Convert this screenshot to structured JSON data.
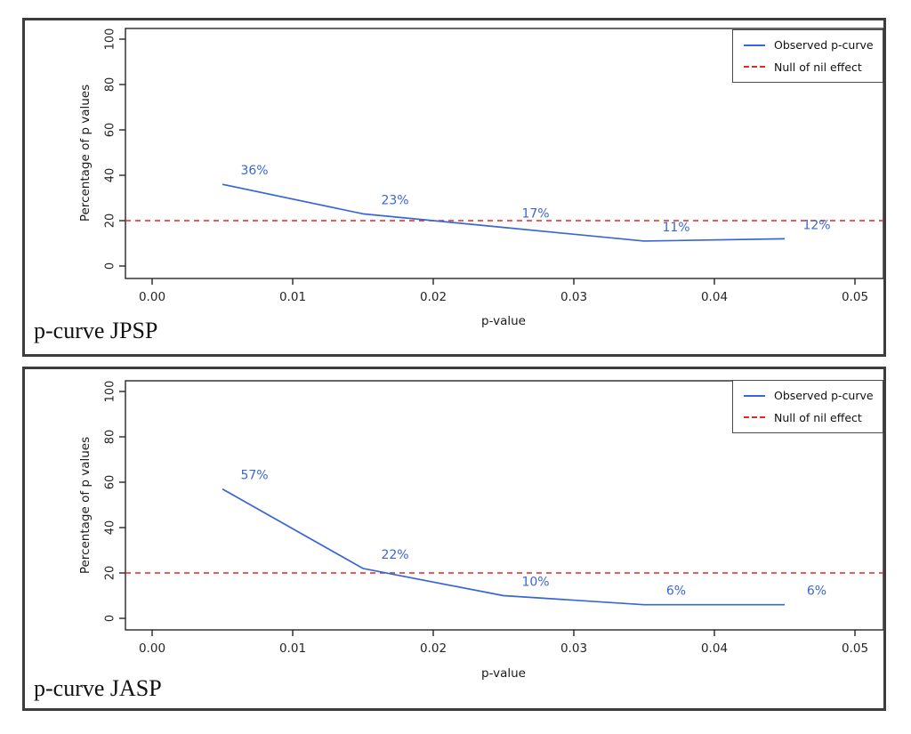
{
  "colors": {
    "observed": "#3a66d4",
    "null_effect": "#ea2520",
    "axis": "#262626",
    "panel_border": "#3d3d3d"
  },
  "legend": {
    "observed_label": "Observed p-curve",
    "null_label": "Null of nil effect"
  },
  "chart_data": [
    {
      "type": "line",
      "title": "p-curve JPSP",
      "xlabel": "p-value",
      "ylabel": "Percentage of p values",
      "x": [
        0.005,
        0.015,
        0.025,
        0.035,
        0.045
      ],
      "series": [
        {
          "name": "Observed p-curve",
          "values": [
            36,
            23,
            17,
            11,
            12
          ]
        }
      ],
      "point_labels": [
        "36%",
        "23%",
        "17%",
        "11%",
        "12%"
      ],
      "null_line_value": 20,
      "xticks": [
        "0.00",
        "0.01",
        "0.02",
        "0.03",
        "0.04",
        "0.05"
      ],
      "yticks": [
        "0",
        "20",
        "40",
        "60",
        "80",
        "100"
      ],
      "xlim": [
        -0.002,
        0.052
      ],
      "ylim": [
        0,
        100
      ],
      "grid": false,
      "legend_position": "top-right"
    },
    {
      "type": "line",
      "title": "p-curve JASP",
      "xlabel": "p-value",
      "ylabel": "Percentage of p values",
      "x": [
        0.005,
        0.015,
        0.025,
        0.035,
        0.045
      ],
      "series": [
        {
          "name": "Observed p-curve",
          "values": [
            57,
            22,
            10,
            6,
            6
          ]
        }
      ],
      "point_labels": [
        "57%",
        "22%",
        "10%",
        "6%",
        "6%"
      ],
      "null_line_value": 20,
      "xticks": [
        "0.00",
        "0.01",
        "0.02",
        "0.03",
        "0.04",
        "0.05"
      ],
      "yticks": [
        "0",
        "20",
        "40",
        "60",
        "80",
        "100"
      ],
      "xlim": [
        -0.002,
        0.052
      ],
      "ylim": [
        0,
        100
      ],
      "grid": false,
      "legend_position": "top-right"
    }
  ]
}
